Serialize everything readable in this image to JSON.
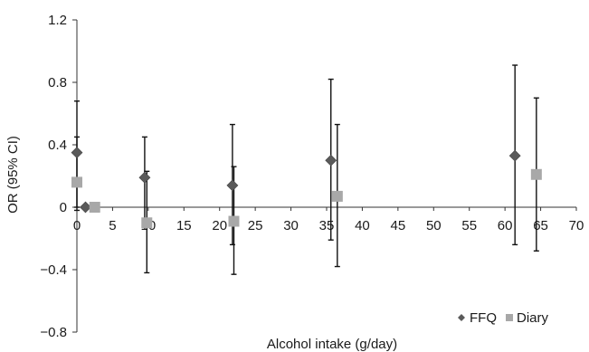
{
  "chart_data": {
    "type": "scatter",
    "xlabel": "Alcohol intake (g/day)",
    "ylabel": "OR (95% CI)",
    "xlim": [
      0,
      70
    ],
    "ylim": [
      -0.8,
      1.2
    ],
    "x_ticks": [
      "0",
      "5",
      "10",
      "15",
      "20",
      "25",
      "30",
      "35",
      "40",
      "45",
      "50",
      "55",
      "60",
      "65",
      "70"
    ],
    "y_ticks": [
      "−0.8",
      "−0.4",
      "0",
      "0.4",
      "0.8",
      "1.2"
    ],
    "grid": false,
    "legend_position": "bottom-right",
    "series": [
      {
        "name": "FFQ",
        "marker": "diamond",
        "color": "#5a5a5a",
        "points": [
          {
            "x": 0.0,
            "y": 0.35,
            "lo": 0.0,
            "hi": 0.68
          },
          {
            "x": 1.2,
            "y": 0.0,
            "lo": 0.0,
            "hi": 0.0
          },
          {
            "x": 9.5,
            "y": 0.19,
            "lo": -0.1,
            "hi": 0.45
          },
          {
            "x": 21.8,
            "y": 0.14,
            "lo": -0.24,
            "hi": 0.53
          },
          {
            "x": 35.6,
            "y": 0.3,
            "lo": -0.21,
            "hi": 0.82
          },
          {
            "x": 61.4,
            "y": 0.33,
            "lo": -0.24,
            "hi": 0.91
          }
        ]
      },
      {
        "name": "Diary",
        "marker": "square",
        "color": "#a8a8a8",
        "points": [
          {
            "x": 0.0,
            "y": 0.16,
            "lo": -0.02,
            "hi": 0.45
          },
          {
            "x": 2.5,
            "y": 0.0,
            "lo": 0.0,
            "hi": 0.0
          },
          {
            "x": 9.8,
            "y": -0.1,
            "lo": -0.42,
            "hi": 0.23
          },
          {
            "x": 22.0,
            "y": -0.09,
            "lo": -0.43,
            "hi": 0.26
          },
          {
            "x": 36.5,
            "y": 0.07,
            "lo": -0.38,
            "hi": 0.53
          },
          {
            "x": 64.4,
            "y": 0.21,
            "lo": -0.28,
            "hi": 0.7
          }
        ]
      }
    ]
  }
}
